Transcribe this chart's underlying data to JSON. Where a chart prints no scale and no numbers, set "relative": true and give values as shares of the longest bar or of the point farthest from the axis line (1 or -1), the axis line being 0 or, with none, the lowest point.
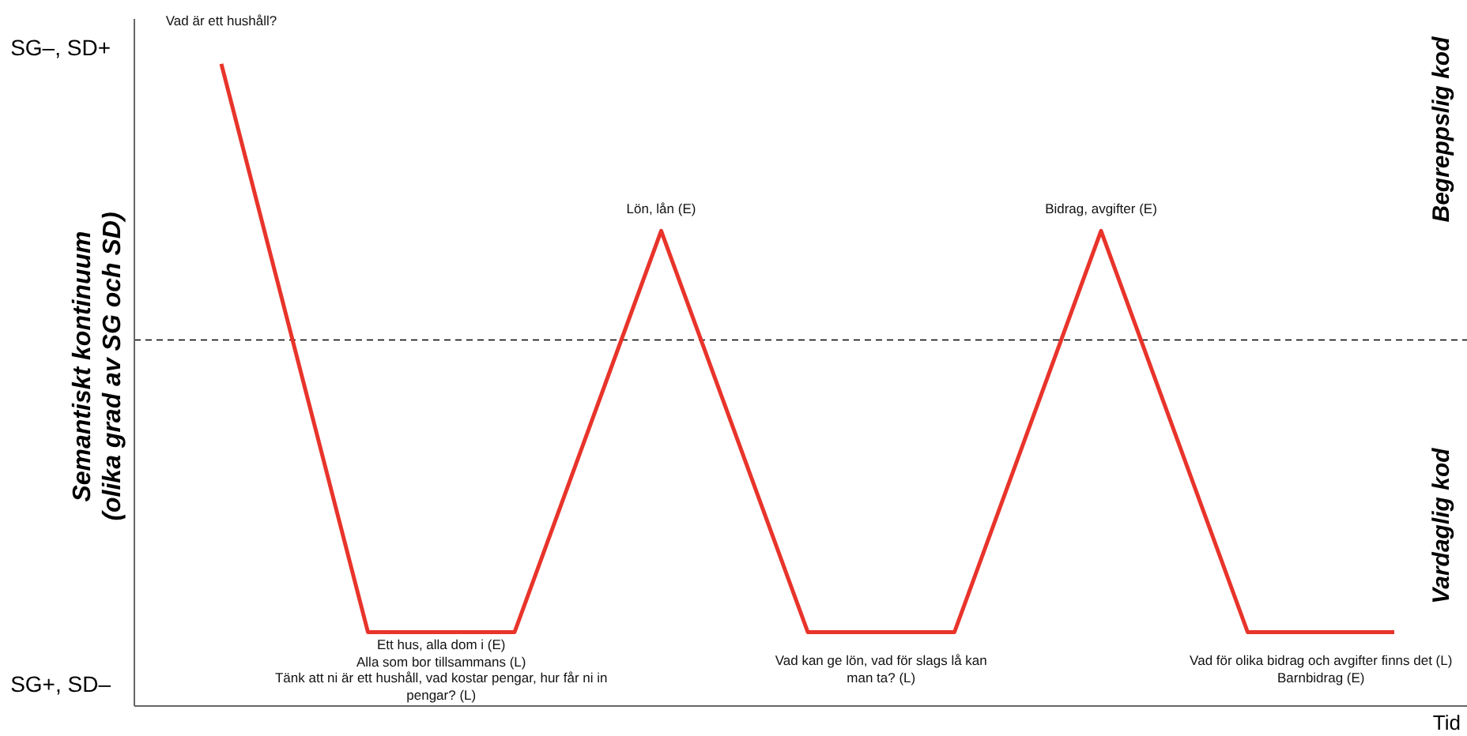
{
  "chart_data": {
    "type": "line",
    "xlabel": "Tid",
    "ylabel": "Semantiskt kontinuum\n(olika grad av SG och SD)",
    "categories": [
      null,
      null,
      null,
      null,
      null,
      null,
      null,
      null,
      null
    ],
    "series": [
      {
        "color": "#e8342b",
        "values": [
          1,
          0.115,
          0.115,
          0.74,
          0.115,
          0.115,
          0.74,
          0.115,
          0.115
        ]
      }
    ],
    "relative": true,
    "ref_lines": [
      {
        "axis": "y",
        "value": 0.57,
        "line_style": "dashed",
        "color": "#000000"
      }
    ],
    "annotations": [
      "Vad är ett hushåll?",
      "Lön, lån (E)",
      "Bidrag, avgifter (E)",
      "Ett hus, alla dom i (E)",
      "Alla som bor tillsammans (L)",
      "Tänk att ni är ett hushåll, vad kostar pengar, hur får ni in pengar? (L)",
      "Vad kan ge lön, vad för slags lå kan man ta? (L)",
      "Vad för olika bidrag och avgifter finns det (L)",
      "Barnbidrag (E)",
      "Begreppslig kod",
      "Vardaglig kod",
      "SG–, SD+",
      "SG+, SD–"
    ],
    "marker": "none",
    "line_style": "solid"
  }
}
